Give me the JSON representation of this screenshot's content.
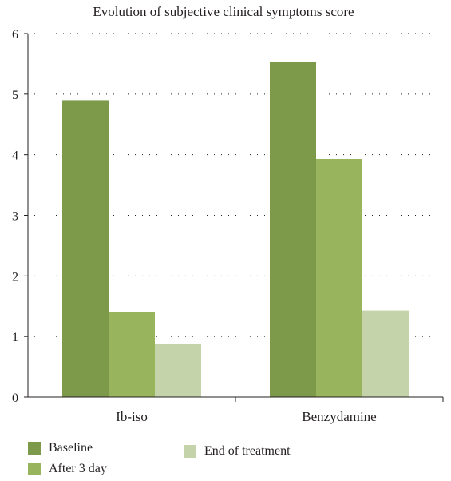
{
  "chart_data": {
    "type": "bar",
    "title": "Evolution of subjective clinical symptoms score",
    "xlabel": "",
    "ylabel": "",
    "categories": [
      "Ib-iso",
      "Benzydamine"
    ],
    "series": [
      {
        "name": "Baseline",
        "values": [
          4.9,
          5.53
        ],
        "color": "#7d9a4a"
      },
      {
        "name": "After 3 day",
        "values": [
          1.4,
          3.93
        ],
        "color": "#98b55e"
      },
      {
        "name": "End of treatment",
        "values": [
          0.87,
          1.43
        ],
        "color": "#c5d3ab"
      }
    ],
    "ylim": [
      0,
      6
    ],
    "yticks": [
      "0",
      "1",
      "2",
      "3",
      "4",
      "5",
      "6"
    ],
    "grid": true,
    "legend_position": "bottom-left"
  }
}
